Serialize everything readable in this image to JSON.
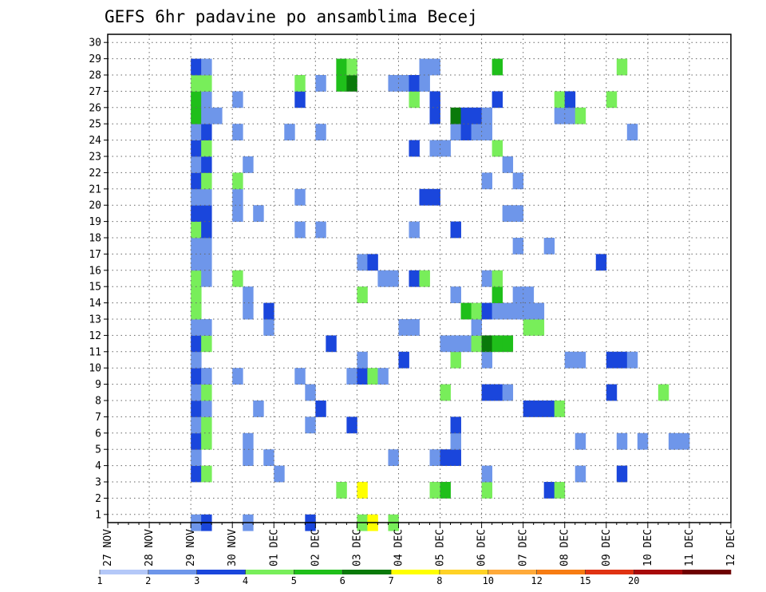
{
  "chart_data": {
    "type": "heatmap",
    "title": "GEFS 6hr padavine po ansamblima Becej",
    "xlabel": "",
    "ylabel": "",
    "x_tick_labels": [
      "27 NOV",
      "28 NOV",
      "29 NOV",
      "30 NOV",
      "01 DEC",
      "02 DEC",
      "03 DEC",
      "04 DEC",
      "05 DEC",
      "06 DEC",
      "07 DEC",
      "08 DEC",
      "09 DEC",
      "10 DEC",
      "11 DEC",
      "12 DEC"
    ],
    "y_tick_labels": [
      "1",
      "2",
      "3",
      "4",
      "5",
      "6",
      "7",
      "8",
      "9",
      "10",
      "11",
      "12",
      "13",
      "14",
      "15",
      "16",
      "17",
      "18",
      "19",
      "20",
      "21",
      "22",
      "23",
      "24",
      "25",
      "26",
      "27",
      "28",
      "29",
      "30"
    ],
    "x_unit": "6-hour step (4 per day)",
    "grid": true,
    "legend": {
      "placement": "bottom",
      "boundaries": [
        1,
        2,
        3,
        4,
        5,
        6,
        7,
        8,
        10,
        12,
        15,
        20
      ],
      "boundary_labels": [
        "1",
        "2",
        "3",
        "4",
        "5",
        "6",
        "7",
        "8",
        "10",
        "12",
        "15",
        "20"
      ],
      "colors": [
        "#b4c8f8",
        "#6e96ea",
        "#1a46dc",
        "#78ee5a",
        "#1fbf1a",
        "#0a7a0a",
        "#ffff00",
        "#ffd226",
        "#ffaa3a",
        "#f77c12",
        "#e03212",
        "#a80a0a",
        "#6e0000"
      ]
    },
    "cells": [
      [
        0,
        8,
        1,
        8
      ],
      [
        0,
        9,
        2,
        9
      ],
      [
        0,
        13,
        1,
        13
      ],
      [
        0,
        19,
        2,
        19
      ],
      [
        0,
        24,
        3,
        24
      ],
      [
        0,
        25,
        6,
        25
      ],
      [
        0,
        27,
        3,
        27
      ],
      [
        2,
        22,
        3,
        22
      ],
      [
        2,
        24,
        6,
        24
      ],
      [
        2,
        31,
        3,
        31
      ],
      [
        2,
        32,
        4,
        32
      ],
      [
        2,
        36,
        3,
        36
      ],
      [
        2,
        42,
        2,
        42
      ],
      [
        2,
        43,
        3,
        43
      ],
      [
        3,
        8,
        2,
        8
      ],
      [
        3,
        9,
        3,
        9
      ],
      [
        3,
        16,
        1,
        16
      ],
      [
        3,
        36,
        1,
        36
      ],
      [
        3,
        45,
        1,
        45
      ],
      [
        3,
        49,
        2,
        49
      ],
      [
        4,
        8,
        1,
        8
      ],
      [
        4,
        13,
        1,
        13
      ],
      [
        4,
        15,
        1,
        15
      ],
      [
        4,
        27,
        1,
        27
      ],
      [
        4,
        31,
        1,
        31
      ],
      [
        4,
        32,
        2,
        32
      ],
      [
        4,
        33,
        2,
        33
      ],
      [
        5,
        8,
        2,
        8
      ],
      [
        5,
        9,
        3,
        9
      ],
      [
        5,
        13,
        1,
        13
      ],
      [
        5,
        33,
        1,
        33
      ],
      [
        5,
        45,
        1,
        45
      ],
      [
        5,
        49,
        1,
        49
      ],
      [
        5,
        51,
        1,
        51
      ],
      [
        5,
        54,
        1,
        54
      ],
      [
        5,
        55,
        1,
        55
      ],
      [
        6,
        8,
        1,
        8
      ],
      [
        6,
        9,
        3,
        9
      ],
      [
        6,
        19,
        1,
        19
      ],
      [
        6,
        23,
        2,
        23
      ],
      [
        6,
        33,
        2,
        33
      ],
      [
        7,
        8,
        2,
        8
      ],
      [
        7,
        9,
        1,
        9
      ],
      [
        7,
        14,
        1,
        14
      ],
      [
        7,
        20,
        2,
        20
      ],
      [
        7,
        40,
        2,
        40
      ],
      [
        7,
        41,
        2,
        41
      ],
      [
        7,
        42,
        2,
        42
      ],
      [
        7,
        43,
        3,
        43
      ],
      [
        8,
        8,
        1,
        8
      ],
      [
        8,
        9,
        3,
        9
      ],
      [
        8,
        19,
        1,
        19
      ],
      [
        8,
        32,
        3,
        32
      ],
      [
        8,
        36,
        2,
        36
      ],
      [
        8,
        37,
        2,
        37
      ],
      [
        8,
        38,
        1,
        38
      ],
      [
        8,
        48,
        2,
        48
      ],
      [
        8,
        53,
        3,
        53
      ],
      [
        9,
        8,
        2,
        8
      ],
      [
        9,
        9,
        1,
        9
      ],
      [
        9,
        12,
        1,
        12
      ],
      [
        9,
        18,
        1,
        18
      ],
      [
        9,
        23,
        1,
        23
      ],
      [
        9,
        24,
        2,
        24
      ],
      [
        9,
        25,
        3,
        25
      ],
      [
        9,
        26,
        1,
        26
      ],
      [
        10,
        8,
        1,
        8
      ],
      [
        10,
        24,
        1,
        24
      ],
      [
        10,
        28,
        2,
        28
      ],
      [
        10,
        33,
        3,
        33
      ],
      [
        10,
        36,
        1,
        36
      ],
      [
        10,
        44,
        1,
        44
      ],
      [
        10,
        45,
        1,
        45
      ],
      [
        10,
        48,
        2,
        48
      ],
      [
        10,
        49,
        2,
        49
      ],
      [
        10,
        50,
        1,
        50
      ],
      [
        11,
        8,
        2,
        8
      ],
      [
        11,
        9,
        3,
        9
      ],
      [
        11,
        21,
        2,
        21
      ],
      [
        11,
        32,
        1,
        32
      ],
      [
        11,
        33,
        1,
        33
      ],
      [
        11,
        34,
        1,
        34
      ],
      [
        11,
        35,
        3,
        35
      ],
      [
        11,
        36,
        5,
        36
      ],
      [
        11,
        37,
        4,
        37
      ],
      [
        11,
        38,
        4,
        38
      ],
      [
        12,
        8,
        1,
        8
      ],
      [
        12,
        9,
        1,
        9
      ],
      [
        12,
        15,
        1,
        15
      ],
      [
        12,
        28,
        1,
        28
      ],
      [
        12,
        29,
        1,
        29
      ],
      [
        12,
        35,
        1,
        35
      ],
      [
        12,
        40,
        3,
        40
      ],
      [
        12,
        41,
        3,
        41
      ],
      [
        13,
        8,
        3,
        8
      ],
      [
        13,
        13,
        1,
        13
      ],
      [
        13,
        15,
        2,
        15
      ],
      [
        13,
        34,
        4,
        34
      ],
      [
        13,
        35,
        3,
        35
      ],
      [
        13,
        36,
        2,
        36
      ],
      [
        13,
        37,
        1,
        37
      ],
      [
        13,
        38,
        1,
        38
      ],
      [
        13,
        39,
        1,
        39
      ],
      [
        13,
        40,
        1,
        40
      ],
      [
        13,
        41,
        1,
        41
      ],
      [
        14,
        8,
        3,
        8
      ],
      [
        14,
        13,
        1,
        13
      ],
      [
        14,
        24,
        3,
        24
      ],
      [
        14,
        33,
        1,
        33
      ],
      [
        14,
        37,
        4,
        37
      ],
      [
        14,
        39,
        1,
        39
      ],
      [
        14,
        40,
        1,
        40
      ],
      [
        15,
        8,
        3,
        8
      ],
      [
        15,
        9,
        1,
        9
      ],
      [
        15,
        12,
        3,
        12
      ],
      [
        15,
        26,
        1,
        26
      ],
      [
        15,
        27,
        1,
        27
      ],
      [
        15,
        29,
        2,
        29
      ],
      [
        15,
        30,
        3,
        30
      ],
      [
        15,
        36,
        1,
        36
      ],
      [
        15,
        37,
        3,
        37
      ],
      [
        16,
        8,
        1,
        8
      ],
      [
        16,
        9,
        1,
        9
      ],
      [
        16,
        24,
        1,
        24
      ],
      [
        16,
        25,
        2,
        25
      ],
      [
        16,
        47,
        2,
        47
      ],
      [
        17,
        8,
        1,
        8
      ],
      [
        17,
        9,
        1,
        9
      ],
      [
        17,
        39,
        1,
        39
      ],
      [
        17,
        42,
        1,
        42
      ],
      [
        18,
        8,
        3,
        8
      ],
      [
        18,
        9,
        2,
        9
      ],
      [
        18,
        18,
        1,
        18
      ],
      [
        18,
        20,
        1,
        20
      ],
      [
        18,
        29,
        1,
        29
      ],
      [
        18,
        33,
        2,
        33
      ],
      [
        19,
        8,
        2,
        8
      ],
      [
        19,
        9,
        2,
        9
      ],
      [
        19,
        12,
        1,
        12
      ],
      [
        19,
        14,
        1,
        14
      ],
      [
        19,
        38,
        1,
        38
      ],
      [
        19,
        39,
        1,
        39
      ],
      [
        20,
        8,
        1,
        8
      ],
      [
        20,
        9,
        1,
        9
      ],
      [
        20,
        12,
        1,
        12
      ],
      [
        20,
        18,
        1,
        18
      ],
      [
        20,
        30,
        2,
        30
      ],
      [
        20,
        31,
        2,
        31
      ],
      [
        21,
        8,
        2,
        8
      ],
      [
        21,
        9,
        3,
        9
      ],
      [
        21,
        12,
        3,
        12
      ],
      [
        21,
        36,
        1,
        36
      ],
      [
        21,
        39,
        1,
        39
      ],
      [
        22,
        8,
        1,
        8
      ],
      [
        22,
        9,
        2,
        9
      ],
      [
        22,
        13,
        1,
        13
      ],
      [
        22,
        38,
        1,
        38
      ],
      [
        23,
        8,
        2,
        8
      ],
      [
        23,
        9,
        3,
        9
      ],
      [
        23,
        29,
        2,
        29
      ],
      [
        23,
        31,
        1,
        31
      ],
      [
        23,
        32,
        1,
        32
      ],
      [
        23,
        37,
        3,
        37
      ],
      [
        24,
        8,
        1,
        8
      ],
      [
        24,
        9,
        2,
        9
      ],
      [
        24,
        12,
        1,
        12
      ],
      [
        24,
        17,
        1,
        17
      ],
      [
        24,
        20,
        1,
        20
      ],
      [
        24,
        33,
        1,
        33
      ],
      [
        24,
        34,
        2,
        34
      ],
      [
        24,
        35,
        1,
        35
      ],
      [
        24,
        36,
        1,
        36
      ],
      [
        24,
        50,
        1,
        50
      ],
      [
        25,
        8,
        4,
        8
      ],
      [
        25,
        9,
        1,
        9
      ],
      [
        25,
        10,
        1,
        10
      ],
      [
        25,
        31,
        2,
        31
      ],
      [
        25,
        33,
        5,
        33
      ],
      [
        25,
        34,
        2,
        34
      ],
      [
        25,
        35,
        2,
        35
      ],
      [
        25,
        36,
        1,
        36
      ],
      [
        25,
        43,
        1,
        43
      ],
      [
        25,
        44,
        1,
        44
      ],
      [
        25,
        45,
        3,
        45
      ],
      [
        26,
        8,
        4,
        8
      ],
      [
        26,
        9,
        1,
        9
      ],
      [
        26,
        12,
        1,
        12
      ],
      [
        26,
        18,
        2,
        18
      ],
      [
        26,
        29,
        3,
        29
      ],
      [
        26,
        31,
        2,
        31
      ],
      [
        26,
        37,
        2,
        37
      ],
      [
        26,
        43,
        3,
        43
      ],
      [
        26,
        44,
        2,
        44
      ],
      [
        26,
        48,
        3,
        48
      ],
      [
        27,
        8,
        3,
        8
      ],
      [
        27,
        9,
        3,
        9
      ],
      [
        27,
        18,
        3,
        18
      ],
      [
        27,
        20,
        1,
        20
      ],
      [
        27,
        22,
        4,
        22
      ],
      [
        27,
        23,
        5,
        23
      ],
      [
        27,
        27,
        1,
        27
      ],
      [
        27,
        28,
        1,
        28
      ],
      [
        27,
        29,
        2,
        29
      ],
      [
        27,
        30,
        1,
        30
      ],
      [
        28,
        8,
        2,
        8
      ],
      [
        28,
        9,
        1,
        9
      ],
      [
        28,
        22,
        4,
        22
      ],
      [
        28,
        23,
        3,
        23
      ],
      [
        28,
        30,
        1,
        30
      ],
      [
        28,
        31,
        1,
        31
      ],
      [
        28,
        37,
        4,
        37
      ],
      [
        28,
        49,
        3,
        49
      ]
    ]
  },
  "cell_encoding": [
    "member",
    "time_step",
    "color_index",
    "time_step_dup"
  ],
  "note_colors": {
    "background": "#ffffff",
    "frame": "#000000",
    "grid": "#555555"
  }
}
